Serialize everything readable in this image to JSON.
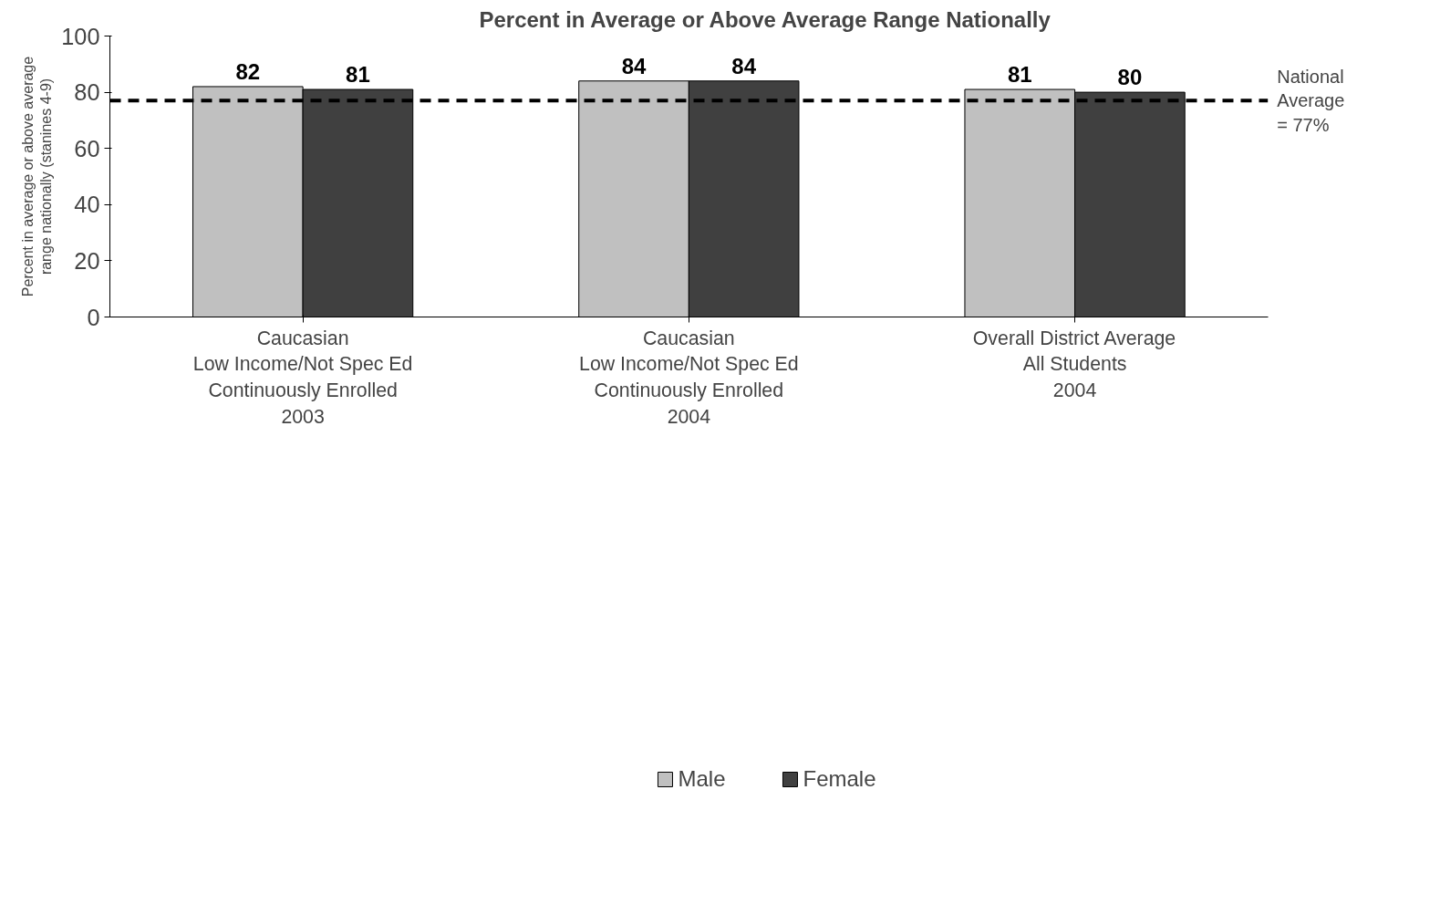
{
  "chart_data": {
    "type": "bar",
    "title": "Percent in Average or Above Average Range Nationally",
    "ylabel": "Percent in average or above average\nrange nationally (stanines 4-9)",
    "categories": [
      "Caucasian\nLow Income/Not Spec Ed\nContinuously Enrolled\n2003",
      "Caucasian\nLow Income/Not Spec Ed\nContinuously Enrolled\n2004",
      "Overall District Average\nAll Students\n2004"
    ],
    "series": [
      {
        "name": "Male",
        "color": "#c0c0c0",
        "values": [
          82,
          84,
          81
        ]
      },
      {
        "name": "Female",
        "color": "#404040",
        "values": [
          81,
          84,
          80
        ]
      }
    ],
    "ylim": [
      0,
      100
    ],
    "yticks": [
      0,
      20,
      40,
      60,
      80,
      100
    ],
    "ref_lines": [
      {
        "axis": "y",
        "value": 77,
        "label": "National\nAverage\n= 77%",
        "line_style": "dashed",
        "color": "#000000"
      }
    ],
    "data_labels": true,
    "grid": false,
    "legend": "bottom"
  }
}
